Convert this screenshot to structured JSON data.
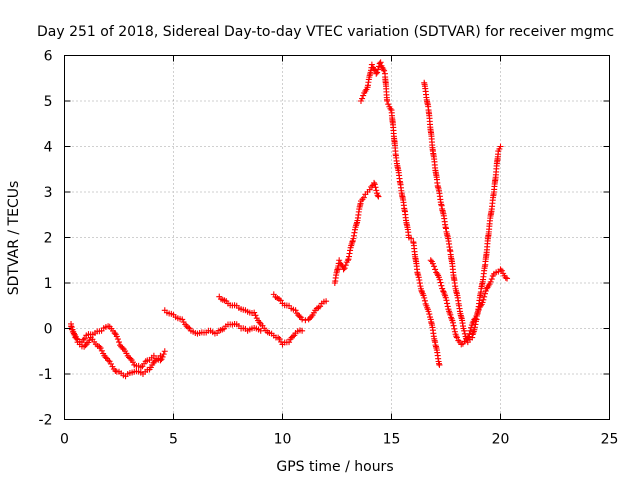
{
  "chart_data": {
    "type": "scatter",
    "title": "Day 251 of 2018, Sidereal Day-to-day VTEC variation (SDTVAR) for receiver mgmc",
    "xlabel": "GPS time / hours",
    "ylabel": "SDTVAR / TECUs",
    "xlim": [
      0,
      25
    ],
    "ylim": [
      -2,
      6
    ],
    "xticks": [
      "0",
      "5",
      "10",
      "15",
      "20",
      "25"
    ],
    "yticks": [
      "-2",
      "-1",
      "0",
      "1",
      "2",
      "3",
      "4",
      "5",
      "6"
    ],
    "grid": true,
    "marker": "plus",
    "color": "#ff0000",
    "series": [
      {
        "points": [
          [
            0.3,
            0.1
          ],
          [
            0.5,
            -0.2
          ],
          [
            0.8,
            -0.3
          ],
          [
            1.0,
            -0.15
          ],
          [
            1.4,
            -0.1
          ],
          [
            1.7,
            -0.05
          ],
          [
            2.0,
            0.05
          ],
          [
            2.3,
            -0.1
          ],
          [
            2.6,
            -0.4
          ],
          [
            2.9,
            -0.6
          ],
          [
            3.2,
            -0.8
          ],
          [
            3.5,
            -0.85
          ],
          [
            3.8,
            -0.7
          ],
          [
            4.1,
            -0.6
          ],
          [
            4.4,
            -0.7
          ],
          [
            4.6,
            -0.5
          ]
        ]
      },
      {
        "points": [
          [
            0.3,
            0.05
          ],
          [
            0.6,
            -0.3
          ],
          [
            0.9,
            -0.4
          ],
          [
            1.2,
            -0.2
          ],
          [
            1.6,
            -0.4
          ],
          [
            2.0,
            -0.7
          ],
          [
            2.4,
            -0.95
          ],
          [
            2.8,
            -1.05
          ],
          [
            3.2,
            -0.95
          ],
          [
            3.6,
            -1.0
          ],
          [
            3.9,
            -0.9
          ],
          [
            4.2,
            -0.7
          ],
          [
            4.4,
            -0.6
          ]
        ]
      },
      {
        "points": [
          [
            4.6,
            0.4
          ],
          [
            5.0,
            0.3
          ],
          [
            5.4,
            0.2
          ],
          [
            5.8,
            -0.05
          ],
          [
            6.2,
            -0.1
          ],
          [
            6.6,
            -0.05
          ],
          [
            7.0,
            -0.1
          ],
          [
            7.4,
            0.05
          ],
          [
            7.8,
            0.1
          ],
          [
            8.1,
            0.0
          ],
          [
            8.4,
            -0.05
          ],
          [
            8.8,
            0.0
          ],
          [
            9.0,
            -0.05
          ]
        ]
      },
      {
        "points": [
          [
            7.1,
            0.7
          ],
          [
            7.5,
            0.55
          ],
          [
            7.9,
            0.5
          ],
          [
            8.3,
            0.4
          ],
          [
            8.7,
            0.35
          ],
          [
            9.0,
            0.1
          ],
          [
            9.4,
            -0.1
          ],
          [
            9.8,
            -0.2
          ],
          [
            10.0,
            -0.35
          ],
          [
            10.3,
            -0.3
          ],
          [
            10.6,
            -0.1
          ],
          [
            10.9,
            -0.05
          ]
        ]
      },
      {
        "points": [
          [
            9.6,
            0.75
          ],
          [
            10.0,
            0.55
          ],
          [
            10.3,
            0.5
          ],
          [
            10.6,
            0.4
          ],
          [
            10.9,
            0.2
          ],
          [
            11.2,
            0.2
          ],
          [
            11.5,
            0.4
          ],
          [
            11.8,
            0.55
          ],
          [
            12.0,
            0.6
          ]
        ]
      },
      {
        "points": [
          [
            12.4,
            1.0
          ],
          [
            12.6,
            1.5
          ],
          [
            12.8,
            1.3
          ],
          [
            13.0,
            1.5
          ],
          [
            13.2,
            1.9
          ],
          [
            13.4,
            2.3
          ],
          [
            13.6,
            2.8
          ],
          [
            13.8,
            2.95
          ],
          [
            14.0,
            3.05
          ],
          [
            14.2,
            3.2
          ],
          [
            14.4,
            2.9
          ]
        ]
      },
      {
        "points": [
          [
            13.6,
            5.0
          ],
          [
            13.9,
            5.3
          ],
          [
            14.1,
            5.8
          ],
          [
            14.3,
            5.6
          ],
          [
            14.5,
            5.85
          ],
          [
            14.7,
            5.6
          ],
          [
            14.8,
            5.0
          ],
          [
            15.0,
            4.8
          ],
          [
            15.2,
            3.8
          ],
          [
            15.4,
            3.2
          ],
          [
            15.6,
            2.6
          ],
          [
            15.8,
            2.0
          ],
          [
            16.0,
            1.9
          ],
          [
            16.2,
            1.2
          ],
          [
            16.4,
            0.8
          ],
          [
            16.6,
            0.5
          ],
          [
            16.8,
            0.2
          ],
          [
            17.0,
            -0.3
          ],
          [
            17.2,
            -0.8
          ]
        ]
      },
      {
        "points": [
          [
            16.5,
            5.4
          ],
          [
            16.7,
            4.8
          ],
          [
            16.9,
            3.9
          ],
          [
            17.1,
            3.2
          ],
          [
            17.3,
            2.7
          ],
          [
            17.5,
            2.2
          ],
          [
            17.7,
            1.7
          ],
          [
            17.9,
            1.0
          ],
          [
            18.1,
            0.5
          ],
          [
            18.3,
            0.0
          ],
          [
            18.5,
            -0.3
          ],
          [
            18.7,
            -0.2
          ],
          [
            18.9,
            0.2
          ],
          [
            19.1,
            0.8
          ],
          [
            19.3,
            1.4
          ],
          [
            19.5,
            2.3
          ],
          [
            19.7,
            3.0
          ],
          [
            19.9,
            3.9
          ],
          [
            20.0,
            4.0
          ]
        ]
      },
      {
        "points": [
          [
            16.8,
            1.5
          ],
          [
            17.1,
            1.2
          ],
          [
            17.4,
            0.8
          ],
          [
            17.7,
            0.3
          ],
          [
            18.0,
            -0.2
          ],
          [
            18.2,
            -0.35
          ],
          [
            18.5,
            -0.2
          ],
          [
            18.8,
            0.2
          ],
          [
            19.1,
            0.5
          ],
          [
            19.4,
            0.9
          ],
          [
            19.7,
            1.2
          ],
          [
            20.0,
            1.3
          ],
          [
            20.3,
            1.1
          ]
        ]
      }
    ]
  }
}
